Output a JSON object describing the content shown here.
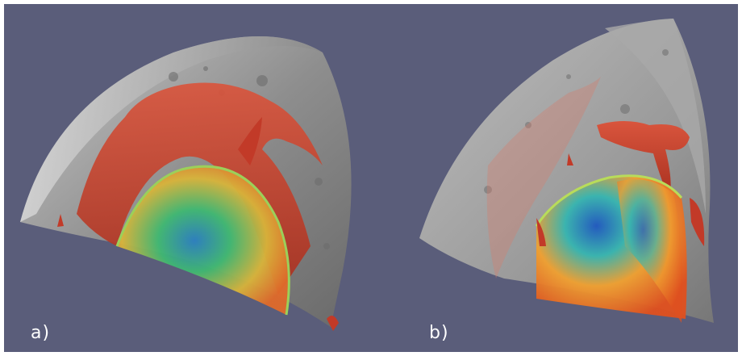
{
  "figure": {
    "background_color": "#5a5d7a",
    "panels": [
      {
        "id": "a",
        "label": "a)"
      },
      {
        "id": "b",
        "label": "b)"
      }
    ],
    "colors": {
      "moon_surface": "#9a9a9a",
      "plume_red": "#c8402e",
      "colormap_low": "#1f5fbf",
      "colormap_mid": "#39b86a",
      "colormap_high": "#e8641e"
    }
  }
}
